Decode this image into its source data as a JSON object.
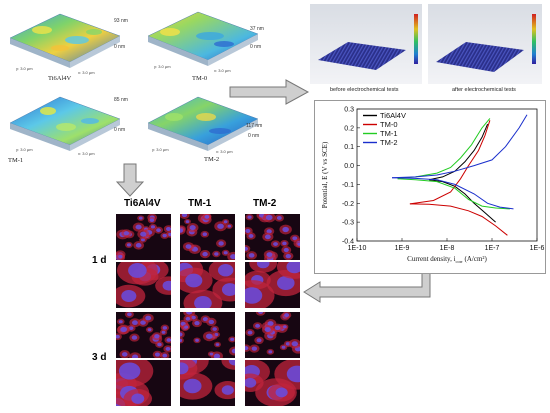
{
  "afm": [
    {
      "sample": "Ti6Al4V",
      "height": "93 nm",
      "base": "0 nm",
      "xlabel": "x: 3.0 µm",
      "ylabel": "y: 3.0 µm"
    },
    {
      "sample": "TM-0",
      "height": "37 nm",
      "base": "0 nm",
      "xlabel": "x: 3.0 µm",
      "ylabel": "y: 3.0 µm"
    },
    {
      "sample": "TM-1",
      "height": "85 nm",
      "base": "0 nm",
      "xlabel": "x: 3.0 µm",
      "ylabel": "y: 3.0 µm"
    },
    {
      "sample": "TM-2",
      "height": "117 nm",
      "base": "0 nm",
      "xlabel": "x: 3.0 µm",
      "ylabel": "y: 3.0 µm"
    }
  ],
  "electrochem": {
    "before_label": "before electrochemical tests",
    "after_label": "after electrochemical tests"
  },
  "cells": {
    "columns": [
      "Ti6Al4V",
      "TM-1",
      "TM-2"
    ],
    "rows": [
      "1 d",
      "3 d"
    ]
  },
  "chart_data": {
    "type": "line",
    "xlabel": "Current density, i",
    "xlabel_sub": "corr",
    "xlabel_unit": "(A/cm²)",
    "ylabel": "Potential, E (V vs SCE)",
    "xscale": "log",
    "xlim": [
      1e-10,
      1e-06
    ],
    "ylim": [
      -0.4,
      0.3
    ],
    "xticks": [
      "1E-10",
      "1E-9",
      "1E-8",
      "1E-7",
      "1E-6"
    ],
    "yticks": [
      "0.3",
      "0.2",
      "0.1",
      "0.0",
      "-0.1",
      "-0.2",
      "-0.3",
      "-0.4"
    ],
    "legend_position": "top-left",
    "series": [
      {
        "name": "Ti6Al4V",
        "color": "#000000",
        "cathodic": [
          [
            1.2e-07,
            -0.3
          ],
          [
            7e-08,
            -0.25
          ],
          [
            4e-08,
            -0.2
          ],
          [
            2.5e-08,
            -0.15
          ],
          [
            1.5e-08,
            -0.11
          ],
          [
            8e-09,
            -0.085
          ],
          [
            4e-09,
            -0.075
          ]
        ],
        "anodic": [
          [
            4e-09,
            -0.075
          ],
          [
            8e-09,
            -0.06
          ],
          [
            1.5e-08,
            -0.03
          ],
          [
            2.5e-08,
            0.02
          ],
          [
            4e-08,
            0.08
          ],
          [
            6e-08,
            0.15
          ],
          [
            8e-08,
            0.22
          ]
        ]
      },
      {
        "name": "TM-0",
        "color": "#cc0000",
        "cathodic": [
          [
            2.2e-07,
            -0.37
          ],
          [
            1.2e-07,
            -0.32
          ],
          [
            6e-08,
            -0.27
          ],
          [
            3e-08,
            -0.24
          ],
          [
            1.2e-08,
            -0.215
          ],
          [
            4e-09,
            -0.205
          ],
          [
            1.5e-09,
            -0.203
          ]
        ],
        "anodic": [
          [
            1.5e-09,
            -0.203
          ],
          [
            5e-09,
            -0.185
          ],
          [
            1.2e-08,
            -0.14
          ],
          [
            2e-08,
            -0.07
          ],
          [
            3e-08,
            0.0
          ],
          [
            5e-08,
            0.08
          ],
          [
            7e-08,
            0.16
          ],
          [
            9e-08,
            0.24
          ]
        ]
      },
      {
        "name": "TM-1",
        "color": "#22cc22",
        "cathodic": [
          [
            2.5e-07,
            -0.23
          ],
          [
            1.2e-07,
            -0.225
          ],
          [
            6e-08,
            -0.215
          ],
          [
            3e-08,
            -0.18
          ],
          [
            1.5e-08,
            -0.12
          ],
          [
            6e-09,
            -0.085
          ],
          [
            2e-09,
            -0.075
          ],
          [
            8e-10,
            -0.07
          ]
        ],
        "anodic": [
          [
            8e-10,
            -0.07
          ],
          [
            2e-09,
            -0.06
          ],
          [
            6e-09,
            -0.04
          ],
          [
            1.2e-08,
            -0.01
          ],
          [
            2e-08,
            0.04
          ],
          [
            3.5e-08,
            0.11
          ],
          [
            6e-08,
            0.2
          ],
          [
            9e-08,
            0.25
          ]
        ]
      },
      {
        "name": "TM-2",
        "color": "#1a2fcc",
        "cathodic": [
          [
            3e-07,
            -0.23
          ],
          [
            1.5e-07,
            -0.22
          ],
          [
            8e-08,
            -0.2
          ],
          [
            4e-08,
            -0.15
          ],
          [
            1.5e-08,
            -0.1
          ],
          [
            6e-09,
            -0.075
          ],
          [
            2e-09,
            -0.068
          ],
          [
            6e-10,
            -0.065
          ]
        ],
        "anodic": [
          [
            6e-10,
            -0.065
          ],
          [
            2e-09,
            -0.06
          ],
          [
            6e-09,
            -0.05
          ],
          [
            1.5e-08,
            -0.03
          ],
          [
            4e-08,
            0.0
          ],
          [
            1e-07,
            0.03
          ],
          [
            2e-07,
            0.1
          ],
          [
            4e-07,
            0.2
          ],
          [
            6e-07,
            0.27
          ]
        ]
      }
    ]
  }
}
